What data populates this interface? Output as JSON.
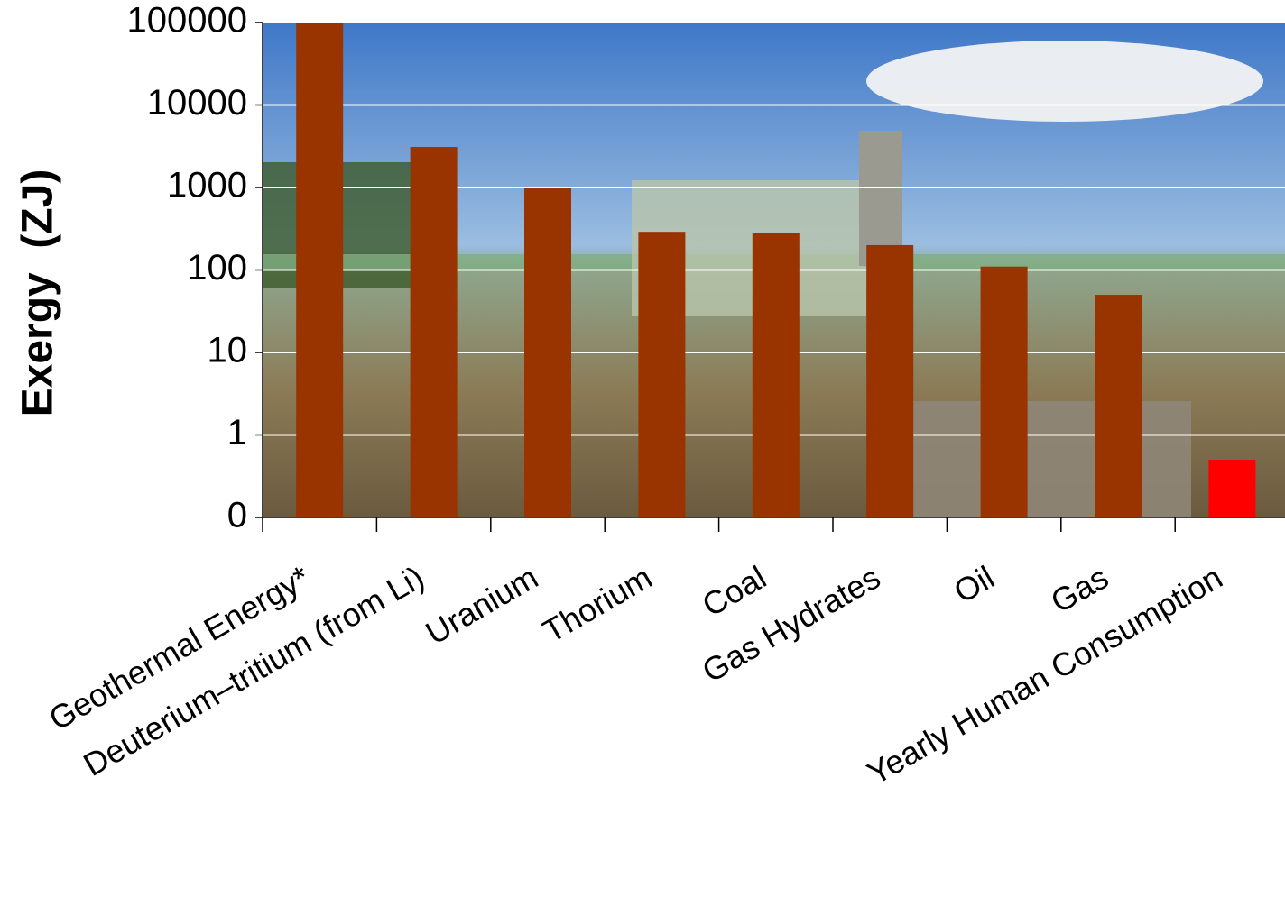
{
  "chart_data": {
    "type": "bar",
    "y_label": "Exergy  (ZJ)",
    "categories": [
      "Geothermal Energy*",
      "Deuterium–tritium (from Li)",
      "Uranium",
      "Thorium",
      "Coal",
      "Gas Hydrates",
      "Oil",
      "Gas",
      "Yearly Human Consumption"
    ],
    "values": [
      100000,
      3100,
      1000,
      290,
      280,
      200,
      110,
      50,
      0.5
    ],
    "colors": [
      "#993300",
      "#993300",
      "#993300",
      "#993300",
      "#993300",
      "#993300",
      "#993300",
      "#993300",
      "#ff0000"
    ],
    "ylim": [
      0.1,
      100000
    ],
    "yticks": [
      {
        "value": 0.1,
        "label": "0"
      },
      1,
      10,
      100,
      1000,
      10000,
      100000
    ],
    "log_scale": true,
    "grid": true,
    "grid_color": "#ffffff"
  }
}
